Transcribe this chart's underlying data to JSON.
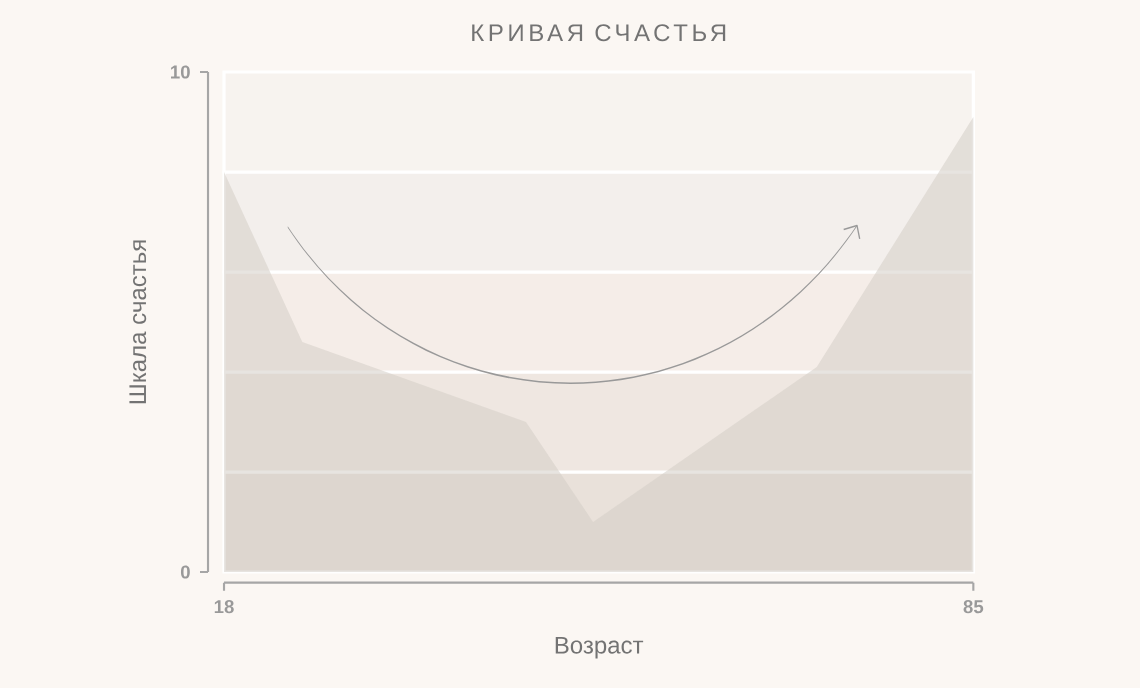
{
  "chart_data": {
    "type": "area",
    "title": "КРИВАЯ СЧАСТЬЯ",
    "xlabel": "Возраст",
    "ylabel": "Шкала счастья",
    "x": [
      18,
      25,
      45,
      51,
      71,
      85
    ],
    "series": [
      {
        "color": "#d3cdc7",
        "values": [
          8,
          4.6,
          3,
          1,
          4.1,
          9.1
        ]
      }
    ],
    "xlim": [
      18,
      85
    ],
    "ylim": [
      0,
      10
    ],
    "xticks": [
      18,
      85
    ],
    "yticks": [
      0,
      10
    ],
    "bands": [
      {
        "axis": "y",
        "from": 0,
        "to": 2,
        "color": "#e9e1da"
      },
      {
        "axis": "y",
        "from": 2,
        "to": 4,
        "color": "#efe7e1"
      },
      {
        "axis": "y",
        "from": 4,
        "to": 6,
        "color": "#f5ede8"
      },
      {
        "axis": "y",
        "from": 6,
        "to": 8,
        "color": "#f3efec"
      },
      {
        "axis": "y",
        "from": 8,
        "to": 10,
        "color": "#f7f3ef"
      }
    ]
  }
}
